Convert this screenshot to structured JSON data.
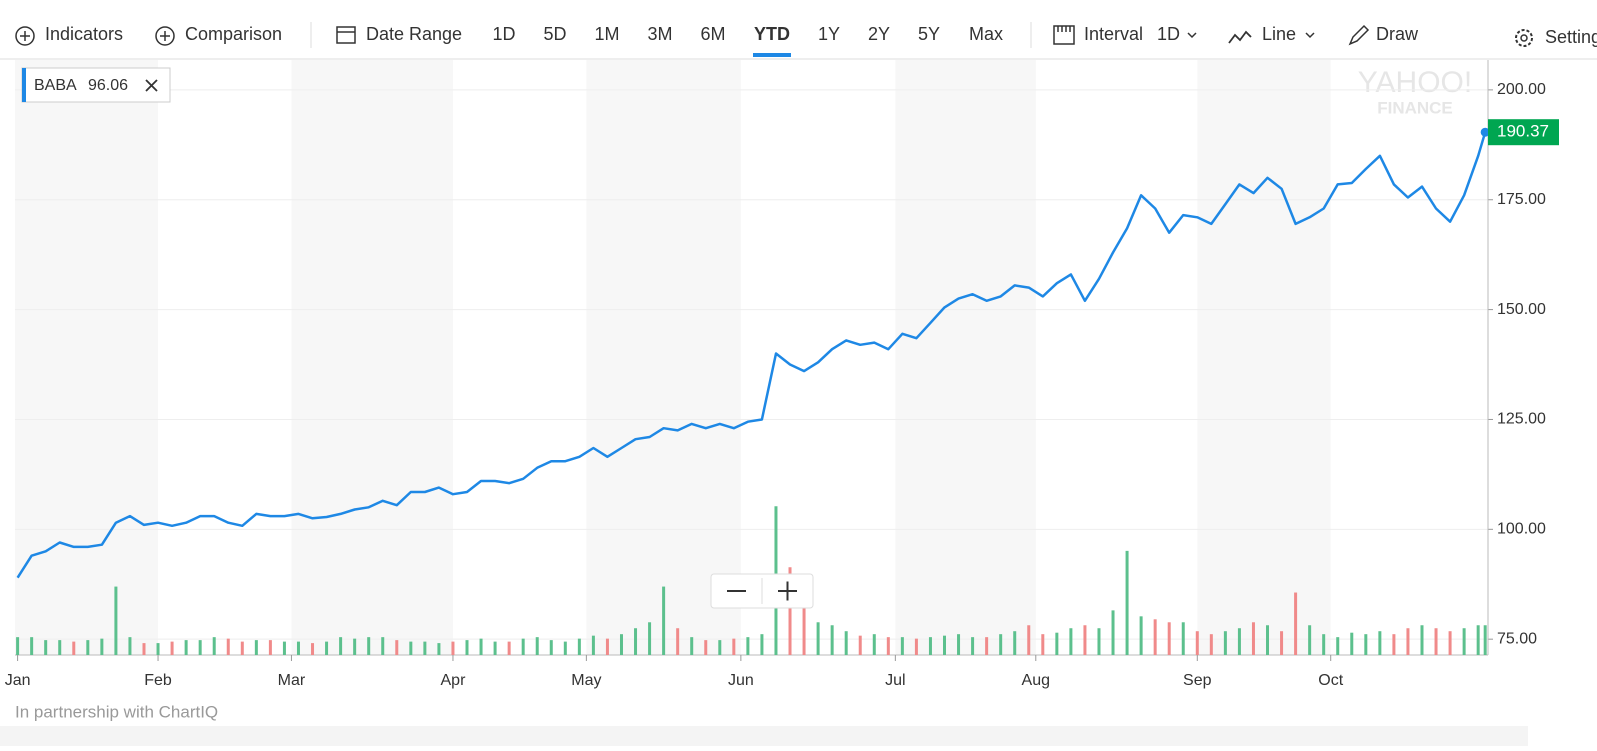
{
  "toolbar": {
    "buttons": [
      "Indicators",
      "Comparison"
    ],
    "date_range": "Date Range",
    "ranges": [
      "1D",
      "5D",
      "1M",
      "3M",
      "6M",
      "YTD",
      "1Y",
      "2Y",
      "5Y",
      "Max"
    ],
    "active_range": 5,
    "interval_label": "Interval",
    "interval": "1D",
    "chart_style": "Line",
    "draw": "Draw",
    "settings": "Settings"
  },
  "legend": {
    "symbol": "BABA",
    "value": 96.06
  },
  "watermark": [
    "YAHOO!",
    "FINANCE"
  ],
  "footer": "In partnership with ChartIQ",
  "chart_data": {
    "type": "line",
    "x": [
      1,
      3,
      5,
      7,
      9,
      11,
      13,
      15,
      17,
      19,
      21,
      23,
      25,
      27,
      29,
      31,
      33,
      35,
      37,
      39,
      41,
      43,
      45,
      47,
      49,
      51,
      53,
      55,
      57,
      59,
      61,
      63,
      65,
      67,
      69,
      71,
      73,
      75,
      77,
      79,
      81,
      83,
      85,
      87,
      89,
      91,
      93,
      95,
      97,
      99,
      101,
      103,
      105,
      107,
      109,
      111,
      113,
      115,
      117,
      119,
      121,
      123,
      125,
      127,
      129,
      131,
      133,
      135,
      137,
      139,
      141,
      143,
      145,
      147,
      149,
      151,
      153,
      155,
      157,
      159,
      161,
      163,
      165,
      167,
      169,
      171,
      173,
      175,
      177,
      179,
      181,
      183,
      185,
      187,
      189,
      191,
      193,
      195,
      197,
      199,
      201,
      203,
      205,
      207,
      209,
      210
    ],
    "series": [
      {
        "name": "BABA",
        "color": "#1e88e5",
        "values": [
          89,
          94,
          95,
          97,
          96,
          96,
          96.5,
          101.5,
          103,
          101,
          101.5,
          100.8,
          101.5,
          103,
          103,
          101.5,
          100.8,
          103.5,
          103,
          103,
          103.5,
          102.5,
          102.8,
          103.5,
          104.5,
          105,
          106.5,
          105.5,
          108.5,
          108.5,
          109.5,
          108,
          108.5,
          111,
          111,
          110.5,
          111.5,
          114,
          115.5,
          115.5,
          116.5,
          118.5,
          116.5,
          118.5,
          120.5,
          121,
          123,
          122.5,
          124,
          123,
          124,
          123,
          124.5,
          125,
          140,
          137.5,
          136,
          138,
          141,
          143,
          142,
          142.5,
          141,
          144.5,
          143.5,
          147,
          150.5,
          152.5,
          153.5,
          152,
          153,
          155.5,
          155,
          153,
          156,
          158,
          152,
          157,
          163,
          168.5,
          176,
          173,
          167.5,
          171.5,
          171,
          169.5,
          174,
          178.5,
          176.5,
          180,
          177.5,
          169.5,
          171,
          173,
          178.5,
          178.8,
          182,
          185,
          178.5,
          175.5,
          178,
          173,
          170,
          176,
          185,
          190.37
        ]
      },
      {
        "name": "Volume",
        "axis": "y2",
        "colors": [
          "#5cc08d",
          "#f08a8a"
        ],
        "values": [
          12,
          12,
          10,
          10,
          9,
          10,
          11,
          46,
          12,
          8,
          8,
          9,
          10,
          10,
          12,
          11,
          9,
          10,
          10,
          9,
          9,
          8,
          9,
          12,
          11,
          12,
          12,
          10,
          9,
          9,
          8,
          9,
          10,
          11,
          9,
          9,
          11,
          12,
          10,
          9,
          11,
          13,
          11,
          14,
          18,
          22,
          46,
          18,
          12,
          10,
          10,
          11,
          12,
          14,
          100,
          59,
          38,
          22,
          20,
          16,
          13,
          14,
          12,
          12,
          11,
          12,
          13,
          14,
          12,
          12,
          14,
          16,
          20,
          14,
          15,
          18,
          20,
          18,
          30,
          70,
          26,
          24,
          22,
          22,
          16,
          14,
          16,
          18,
          22,
          20,
          16,
          42,
          20,
          14,
          12,
          15,
          14,
          16,
          14,
          18,
          20,
          18,
          16,
          18,
          20,
          20
        ]
      }
    ],
    "xlim": [
      0.63,
      210.4
    ],
    "xticks": [
      {
        "value": 1,
        "label": "Jan"
      },
      {
        "value": 21,
        "label": "Feb"
      },
      {
        "value": 40,
        "label": "Mar"
      },
      {
        "value": 63,
        "label": "Apr"
      },
      {
        "value": 82,
        "label": "May"
      },
      {
        "value": 104,
        "label": "Jun"
      },
      {
        "value": 126,
        "label": "Jul"
      },
      {
        "value": 146,
        "label": "Aug"
      },
      {
        "value": 169,
        "label": "Sep"
      },
      {
        "value": 188,
        "label": "Oct"
      }
    ],
    "ylim": [
      71.4,
      206.8
    ],
    "yticks": [
      {
        "value": 75,
        "label": "75.00"
      },
      {
        "value": 100,
        "label": "100.00"
      },
      {
        "value": 125,
        "label": "125.00"
      },
      {
        "value": 150,
        "label": "150.00"
      },
      {
        "value": 175,
        "label": "175.00"
      },
      {
        "value": 200,
        "label": "200.00"
      }
    ],
    "y2lim": [
      0,
      400
    ],
    "grid": true,
    "band_color": "#f7f7f7",
    "last_label_color": "#00a651"
  }
}
